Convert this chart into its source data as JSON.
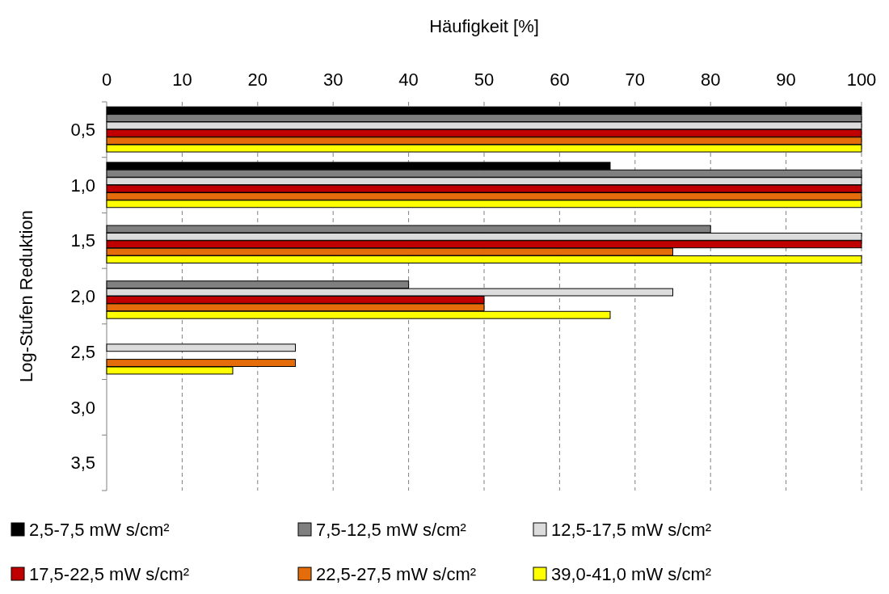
{
  "chart_data": {
    "type": "bar",
    "orientation": "horizontal",
    "xlabel": "Häufigkeit [%]",
    "ylabel": "Log-Stufen Reduktion",
    "categories": [
      "0,5",
      "1,0",
      "1,5",
      "2,0",
      "2,5",
      "3,0",
      "3,5"
    ],
    "series": [
      {
        "name": "2,5-7,5 mW s/cm²",
        "color": "#000000",
        "values": [
          100,
          66.7,
          null,
          null,
          null,
          null,
          null
        ]
      },
      {
        "name": "7,5-12,5 mW s/cm²",
        "color": "#808080",
        "values": [
          100,
          100,
          80,
          40,
          null,
          null,
          null
        ]
      },
      {
        "name": "12,5-17,5 mW s/cm²",
        "color": "#dcdcdc",
        "values": [
          100,
          100,
          100,
          75,
          25,
          null,
          null
        ]
      },
      {
        "name": "17,5-22,5 mW s/cm²",
        "color": "#c00000",
        "values": [
          100,
          100,
          100,
          50,
          null,
          null,
          null
        ]
      },
      {
        "name": "22,5-27,5 mW s/cm²",
        "color": "#e46c0a",
        "values": [
          100,
          100,
          75,
          50,
          25,
          null,
          null
        ]
      },
      {
        "name": "39,0-41,0 mW s/cm²",
        "color": "#ffff00",
        "values": [
          100,
          100,
          100,
          66.7,
          16.7,
          null,
          null
        ]
      }
    ],
    "xlim": [
      0,
      100
    ],
    "xticks": [
      0,
      10,
      20,
      30,
      40,
      50,
      60,
      70,
      80,
      90,
      100
    ],
    "grid": "x",
    "legend": "bottom"
  }
}
